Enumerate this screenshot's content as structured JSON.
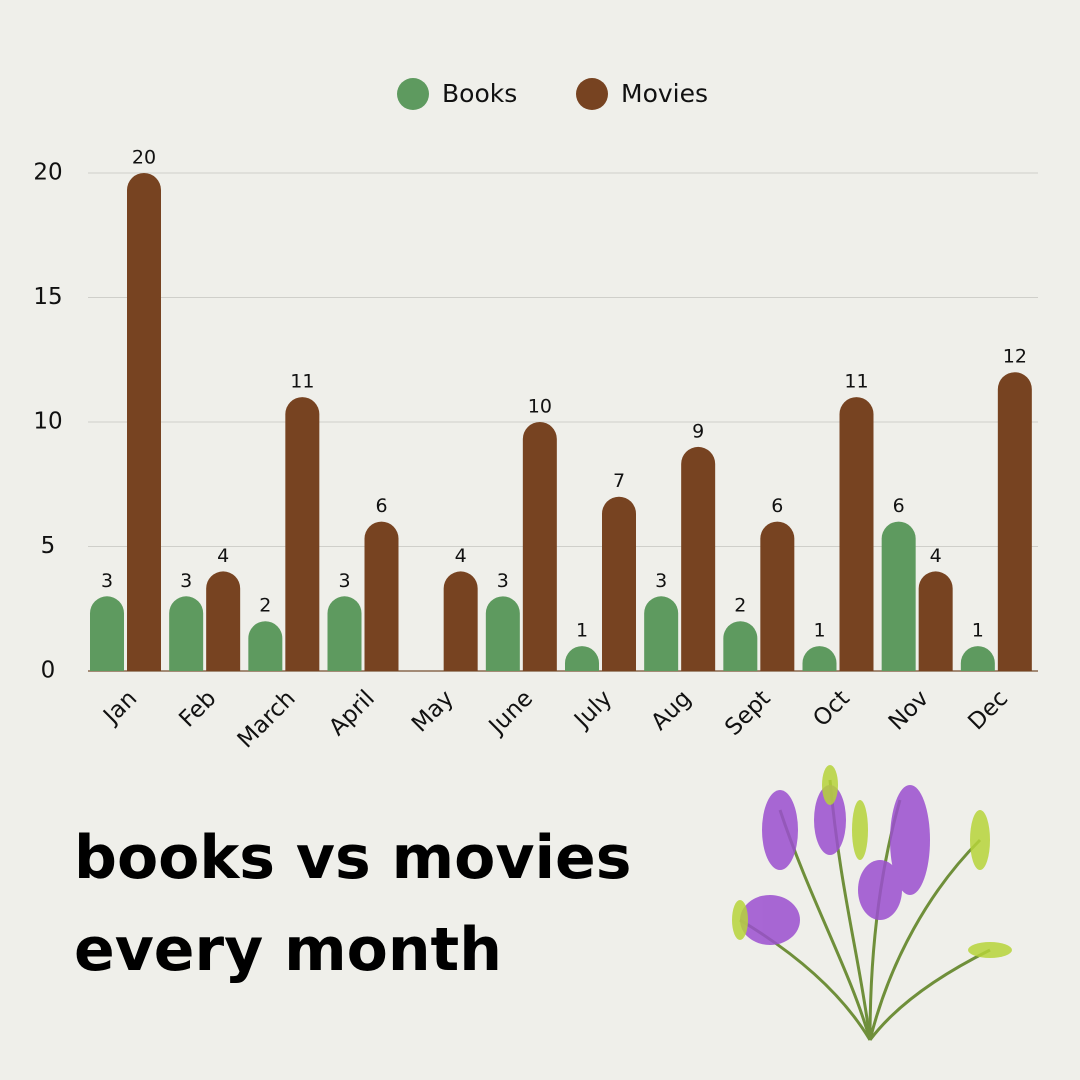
{
  "chart_data": {
    "type": "bar",
    "title": "books vs movies every month",
    "categories": [
      "Jan",
      "Feb",
      "March",
      "April",
      "May",
      "June",
      "July",
      "Aug",
      "Sept",
      "Oct",
      "Nov",
      "Dec"
    ],
    "series": [
      {
        "name": "Books",
        "color": "#5e9a5f",
        "values": [
          3,
          3,
          2,
          3,
          null,
          3,
          1,
          3,
          2,
          1,
          6,
          1
        ]
      },
      {
        "name": "Movies",
        "color": "#774321",
        "values": [
          20,
          4,
          11,
          6,
          4,
          10,
          7,
          9,
          6,
          11,
          4,
          12
        ]
      }
    ],
    "ylim": [
      0,
      20
    ],
    "yticks": [
      0,
      5,
      10,
      15,
      20
    ],
    "grid": true,
    "legend": "top"
  }
}
